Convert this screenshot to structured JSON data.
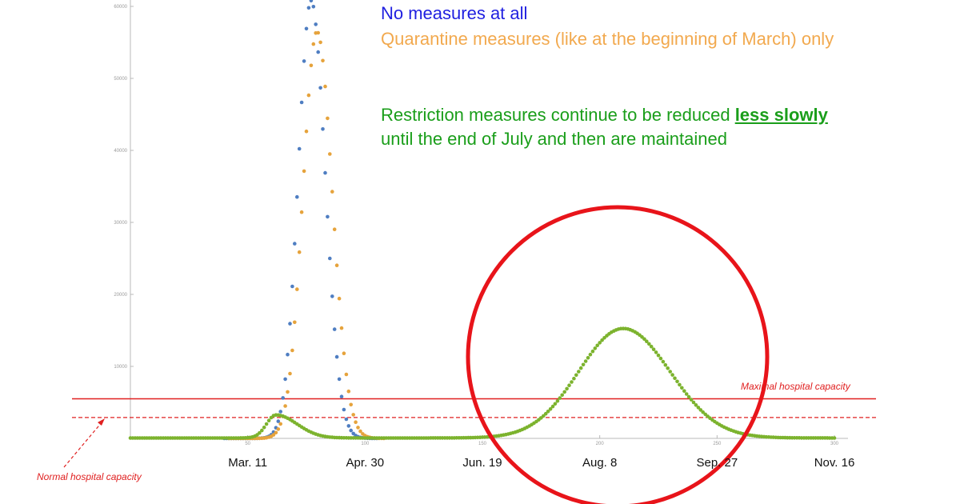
{
  "legend": {
    "no_measures": "No measures at all",
    "quarantine": "Quarantine measures (like at the beginning of  March) only",
    "restriction_prefix": "Restriction measures continue to be reduced ",
    "restriction_emph": "less slowly",
    "restriction_suffix": "until the end of July and then are maintained"
  },
  "annotations": {
    "max_capacity": "Maximal hospital capacity",
    "normal_capacity": "Normal hospital capacity"
  },
  "colors": {
    "no_measures": "#4f7ec2",
    "quarantine": "#e6a33c",
    "restriction": "#7cb32e",
    "capacity": "#e02020",
    "circle": "#e8141a"
  },
  "chart_data": {
    "type": "scatter",
    "xlim": [
      0,
      300
    ],
    "ylim": [
      0,
      60000
    ],
    "x_ticks": [
      50,
      100,
      150,
      200,
      250,
      300
    ],
    "y_ticks": [
      10000,
      20000,
      30000,
      40000,
      50000,
      60000
    ],
    "date_labels": [
      {
        "label": "Mar. 11",
        "x": 50
      },
      {
        "label": "Apr. 30",
        "x": 100
      },
      {
        "label": "Jun. 19",
        "x": 150
      },
      {
        "label": "Aug. 8",
        "x": 200
      },
      {
        "label": "Sep. 27",
        "x": 250
      },
      {
        "label": "Nov. 16",
        "x": 300
      }
    ],
    "capacity_lines": {
      "maximal": 5500,
      "normal": 2900
    },
    "series": [
      {
        "name": "No measures at all",
        "peaks": [
          {
            "x": 77,
            "y": 60800,
            "rise_sigma": 5.5,
            "fall_sigma": 6.0
          }
        ],
        "x_range": [
          40,
          105
        ]
      },
      {
        "name": "Quarantine measures (like at the beginning of  March) only",
        "peaks": [
          {
            "x": 79.5,
            "y": 56500,
            "rise_sigma": 6.0,
            "fall_sigma": 6.5
          }
        ],
        "x_range": [
          42,
          108
        ]
      },
      {
        "name": "Restriction measures continue to be reduced less slowly",
        "peaks": [
          {
            "x": 62,
            "y": 3200,
            "rise_sigma": 4.0,
            "fall_sigma": 9.0
          },
          {
            "x": 210,
            "y": 15200,
            "rise_sigma": 19.0,
            "fall_sigma": 20.0
          }
        ],
        "x_range": [
          0,
          300
        ]
      }
    ]
  }
}
